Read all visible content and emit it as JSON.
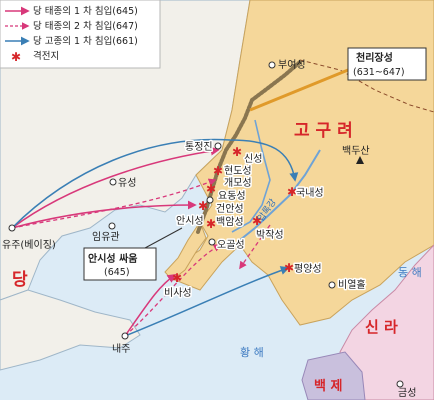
{
  "legend": {
    "first_invasion": "당 태종의 1 차 침입(645)",
    "second_invasion": "당 태종의 2 차 침입(647)",
    "gaozong_invasion": "당 고종의 1 차 침입(661)",
    "battle_site": "격전지"
  },
  "callouts": {
    "cheolli_title": "천리장성",
    "cheolli_years": "(631~647)",
    "ansi_title": "안시성 싸움",
    "ansi_year": "(645)"
  },
  "regions": {
    "goguryeo": "고 구 려",
    "tang": "당",
    "silla": "신 라",
    "baekje": "백 제"
  },
  "seas": {
    "east_sea": "동 해",
    "yellow_sea": "황 해"
  },
  "rivers": {
    "amnok": "압록강"
  },
  "places": {
    "buyeo": "부여성",
    "baekdu": "백두산",
    "tongjeong": "통정진",
    "sinseong": "신성",
    "hyeondo": "현도성",
    "gaemo": "개모성",
    "yodong": "요동성",
    "geonan": "건안성",
    "baegam": "백암성",
    "ansi": "안시성",
    "ogol": "오골성",
    "bakjak": "박작성",
    "gungnae": "국내성",
    "pyeongyang": "평양성",
    "biyeolhol": "비열홀",
    "biseong": "비사성",
    "yuseong": "유성",
    "yuju": "유주(베이징)",
    "imyugwan": "임유관",
    "naeju": "내주",
    "geumseong": "금성"
  },
  "colors": {
    "land_goguryeo": "#f5d79a",
    "land_tang": "#f2f0ea",
    "sea": "#dcebf6",
    "silla": "#f3d5e3",
    "baekje": "#c9c0dd",
    "first_invasion": "#d8387a",
    "second_invasion": "#d8387a",
    "gaozong_invasion": "#3a7fb5",
    "battle": "#d6262a",
    "wall": "#8a7650",
    "region_text": "#d6262a"
  }
}
